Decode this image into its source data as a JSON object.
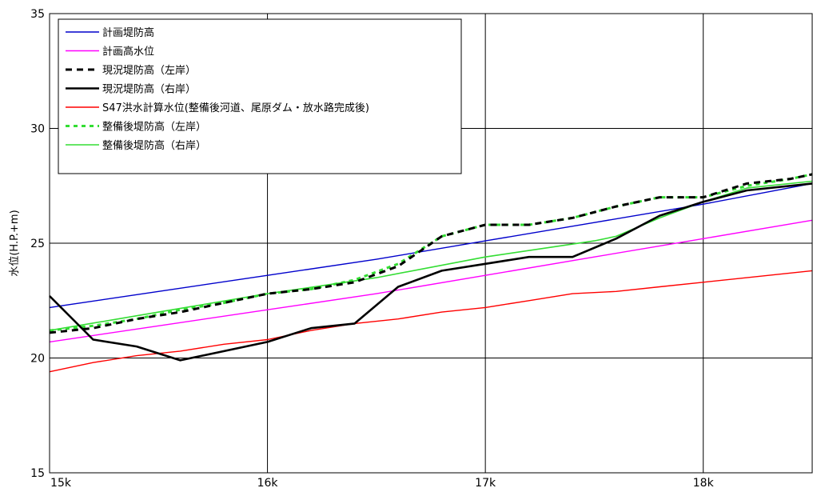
{
  "chart_data": {
    "type": "line",
    "title": "",
    "xlabel": "",
    "ylabel": "水位(H.P.+m)",
    "xlim": [
      15,
      18.5
    ],
    "ylim": [
      15,
      35
    ],
    "xticks": [
      {
        "value": 15,
        "label": "15k"
      },
      {
        "value": 16,
        "label": "16k"
      },
      {
        "value": 17,
        "label": "17k"
      },
      {
        "value": 18,
        "label": "18k"
      }
    ],
    "yticks": [
      {
        "value": 15,
        "label": "15"
      },
      {
        "value": 20,
        "label": "20"
      },
      {
        "value": 25,
        "label": "25"
      },
      {
        "value": 30,
        "label": "30"
      },
      {
        "value": 35,
        "label": "35"
      }
    ],
    "grid": true,
    "legend_position": "top-left",
    "series": [
      {
        "name": "計画堤防高",
        "color": "#0000cc",
        "style": "solid",
        "width": 1.4,
        "x": [
          15.0,
          15.5,
          16.0,
          16.5,
          17.0,
          17.5,
          18.0,
          18.5
        ],
        "y": [
          22.2,
          22.9,
          23.6,
          24.3,
          25.1,
          25.9,
          26.7,
          27.6
        ]
      },
      {
        "name": "計画高水位",
        "color": "#ff00ff",
        "style": "solid",
        "width": 1.4,
        "x": [
          15.0,
          15.5,
          16.0,
          16.5,
          17.0,
          17.5,
          18.0,
          18.5
        ],
        "y": [
          20.7,
          21.4,
          22.1,
          22.8,
          23.6,
          24.4,
          25.2,
          26.0
        ]
      },
      {
        "name": "現況堤防高（左岸）",
        "color": "#000000",
        "style": "dashed",
        "width": 3,
        "x": [
          15.0,
          15.2,
          15.4,
          15.6,
          15.8,
          16.0,
          16.2,
          16.4,
          16.6,
          16.8,
          17.0,
          17.2,
          17.4,
          17.6,
          17.8,
          18.0,
          18.2,
          18.4,
          18.5
        ],
        "y": [
          21.1,
          21.3,
          21.7,
          22.0,
          22.4,
          22.8,
          23.0,
          23.3,
          24.0,
          25.3,
          25.8,
          25.8,
          26.1,
          26.6,
          27.0,
          27.0,
          27.6,
          27.8,
          28.0
        ]
      },
      {
        "name": "現況堤防高（右岸）",
        "color": "#000000",
        "style": "solid",
        "width": 2.6,
        "x": [
          15.0,
          15.2,
          15.4,
          15.6,
          16.0,
          16.2,
          16.4,
          16.6,
          16.8,
          17.0,
          17.2,
          17.4,
          17.6,
          17.8,
          18.0,
          18.2,
          18.5
        ],
        "y": [
          22.7,
          20.8,
          20.5,
          19.9,
          20.7,
          21.3,
          21.5,
          23.1,
          23.8,
          24.1,
          24.4,
          24.4,
          25.2,
          26.2,
          26.8,
          27.3,
          27.6
        ]
      },
      {
        "name": "S47洪水計算水位(整備後河道、尾原ダム・放水路完成後)",
        "color": "#ff0000",
        "style": "solid",
        "width": 1.4,
        "x": [
          15.0,
          15.2,
          15.4,
          15.6,
          15.8,
          16.0,
          16.2,
          16.4,
          16.6,
          16.8,
          17.0,
          17.2,
          17.4,
          17.6,
          17.8,
          18.0,
          18.2,
          18.5
        ],
        "y": [
          19.4,
          19.8,
          20.1,
          20.3,
          20.6,
          20.8,
          21.2,
          21.5,
          21.7,
          22.0,
          22.2,
          22.5,
          22.8,
          22.9,
          23.1,
          23.3,
          23.5,
          23.8
        ]
      },
      {
        "name": "整備後堤防高（左岸）",
        "color": "#33dd33",
        "style": "dotted",
        "width": 3,
        "x": [
          15.0,
          15.2,
          15.4,
          15.6,
          15.8,
          16.0,
          16.2,
          16.4,
          16.6,
          16.8,
          17.0,
          17.2,
          17.4,
          17.6,
          17.8,
          18.0,
          18.2,
          18.4,
          18.5
        ],
        "y": [
          21.2,
          21.4,
          21.7,
          22.1,
          22.4,
          22.8,
          23.0,
          23.4,
          24.1,
          25.3,
          25.8,
          25.8,
          26.1,
          26.6,
          27.0,
          27.0,
          27.5,
          27.8,
          28.0
        ]
      },
      {
        "name": "整備後堤防高（右岸）",
        "color": "#33dd33",
        "style": "solid",
        "width": 1.6,
        "x": [
          15.0,
          15.5,
          16.0,
          16.5,
          17.0,
          17.5,
          17.6,
          17.8,
          18.0,
          18.2,
          18.5
        ],
        "y": [
          21.2,
          22.0,
          22.8,
          23.5,
          24.4,
          25.1,
          25.3,
          26.1,
          26.8,
          27.4,
          27.7
        ]
      }
    ]
  }
}
